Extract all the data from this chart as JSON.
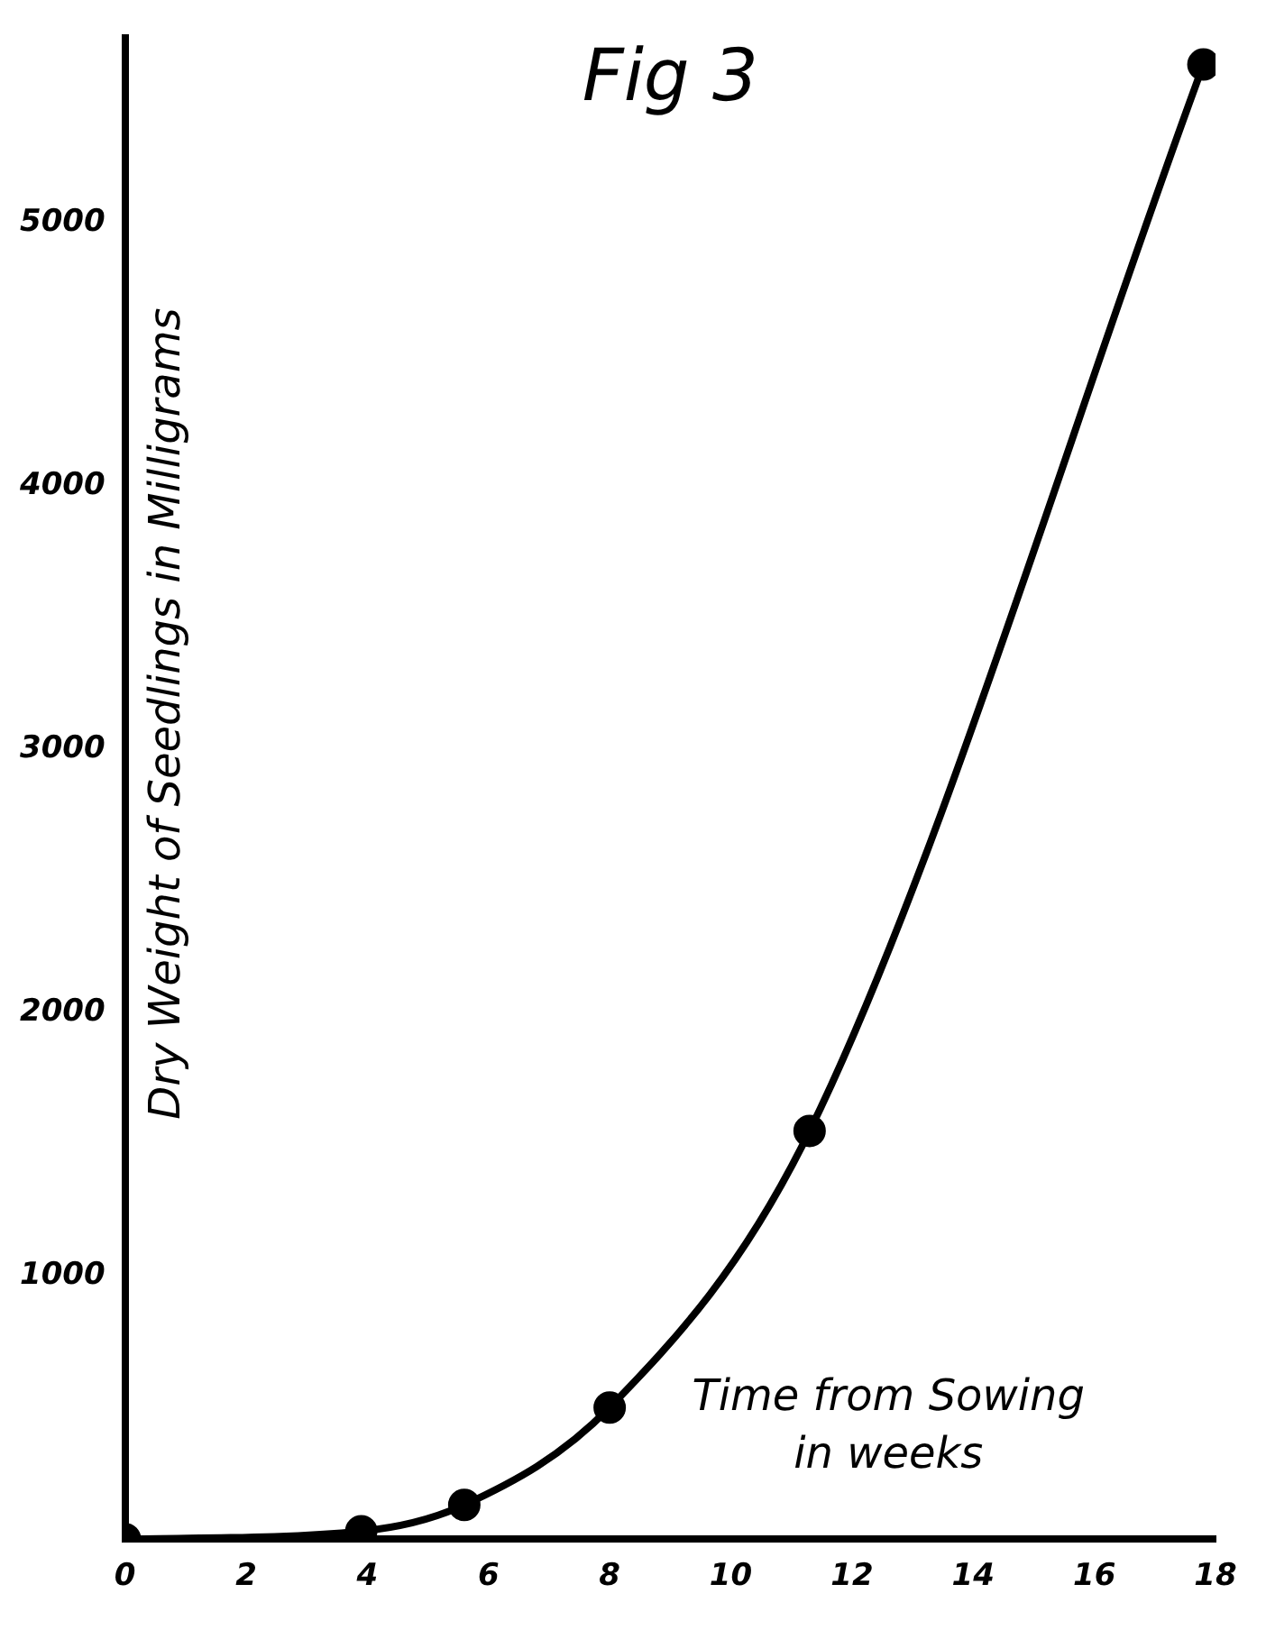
{
  "chart_data": {
    "type": "line",
    "title": "Fig 3",
    "xlabel": "Time from Sowing in weeks",
    "ylabel": "Dry Weight of Seedlings in Milligrams",
    "x": [
      0,
      3.9,
      5.6,
      8,
      11.3,
      17.8
    ],
    "series": [
      {
        "color": "#000000",
        "values": [
          0,
          30,
          130,
          500,
          1550,
          5600
        ]
      }
    ],
    "xlim": [
      0,
      18
    ],
    "xticks": [
      0,
      2,
      4,
      6,
      8,
      10,
      12,
      14,
      16,
      18
    ],
    "ylim": [
      0,
      5700
    ],
    "yticks": [
      1000,
      2000,
      3000,
      4000,
      5000
    ],
    "grid": false,
    "legend": false,
    "marker": "circle",
    "line_style": "solid"
  }
}
